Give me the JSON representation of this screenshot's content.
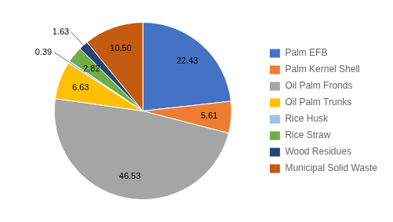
{
  "chart_data": {
    "type": "pie",
    "categories": [
      "Palm EFB",
      "Palm Kernel Shell",
      "Oil Palm Fronds",
      "Oil Palm Trunks",
      "Rice Husk",
      "Rice Straw",
      "Wood Residues",
      "Municipal Solid Waste"
    ],
    "values": [
      22.43,
      5.61,
      46.53,
      6.63,
      0.39,
      2.82,
      1.63,
      10.5
    ],
    "value_labels": [
      "22.43",
      "5.61",
      "46.53",
      "6.63",
      "0.39",
      "2.82",
      "1.63",
      "10.50"
    ],
    "colors": [
      "#4472C4",
      "#ED7D31",
      "#A5A5A5",
      "#FFC000",
      "#9DC3E6",
      "#70AD47",
      "#264478",
      "#C55A11"
    ],
    "data_labels": true,
    "legend": "right"
  }
}
